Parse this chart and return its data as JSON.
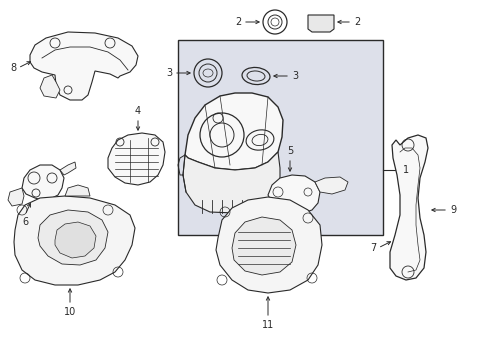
{
  "background_color": "#ffffff",
  "line_color": "#2a2a2a",
  "box_fill": "#e8eaf0",
  "fig_width": 4.9,
  "fig_height": 3.6,
  "dpi": 100
}
